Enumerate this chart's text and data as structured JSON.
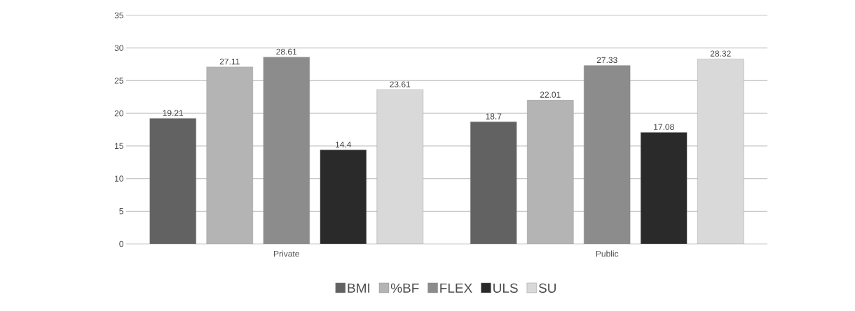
{
  "chart_data": {
    "type": "bar",
    "categories": [
      "Private",
      "Public"
    ],
    "series": [
      {
        "name": "BMI",
        "color": "#626262",
        "values": [
          19.21,
          18.7
        ]
      },
      {
        "name": "%BF",
        "color": "#b4b4b4",
        "values": [
          27.11,
          22.01
        ]
      },
      {
        "name": "FLEX",
        "color": "#8c8c8c",
        "values": [
          28.61,
          27.33
        ]
      },
      {
        "name": "ULS",
        "color": "#2a2a2a",
        "values": [
          14.4,
          17.08
        ]
      },
      {
        "name": "SU",
        "color": "#d9d9d9",
        "values": [
          23.61,
          28.32
        ]
      }
    ],
    "ylim": [
      0,
      35
    ],
    "yticks": [
      0,
      5,
      10,
      15,
      20,
      25,
      30,
      35
    ],
    "grid": "y",
    "legend": "bottom",
    "data_labels": true
  }
}
